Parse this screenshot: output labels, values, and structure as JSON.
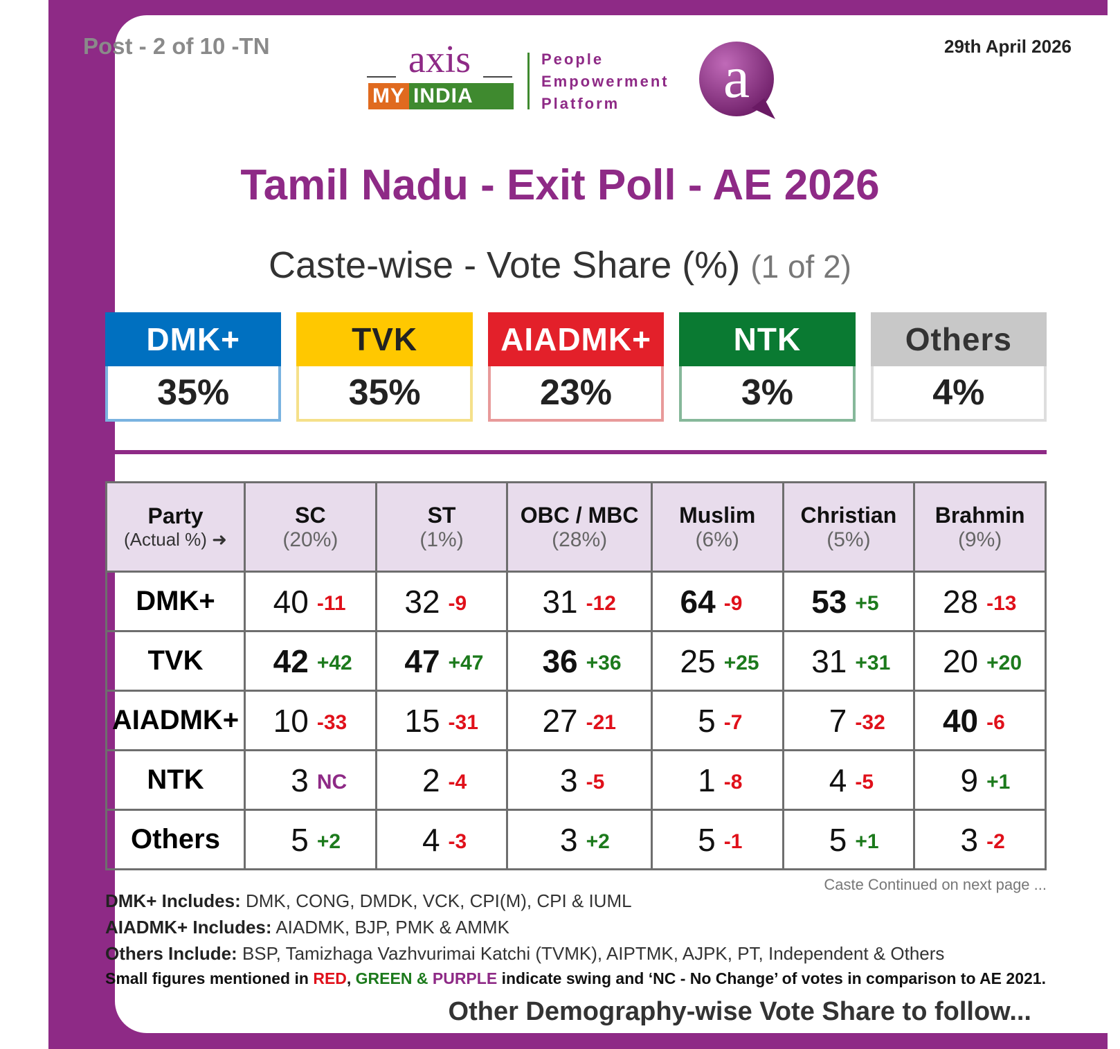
{
  "header": {
    "post": "Post - 2 of 10 -TN",
    "date": "29th April 2026",
    "logo_axis": "axis",
    "logo_my": "MY",
    "logo_india": "INDIA",
    "logo_tagline_1": "People",
    "logo_tagline_2": "Empowerment",
    "logo_tagline_3": "Platform"
  },
  "title": "Tamil Nadu - Exit Poll - AE 2026",
  "subtitle": "Caste-wise - Vote Share (%)",
  "subtitle_part": "(1 of 2)",
  "colors": {
    "brand": "#8e2a86",
    "dmk": "#0070c0",
    "tvk": "#ffc800",
    "aiadmk": "#e3202a",
    "ntk": "#0a7a32",
    "others": "#c8c8c8",
    "swing_negative": "#e0101a",
    "swing_positive": "#1c7a1c",
    "no_change": "#8e2a86"
  },
  "overall": [
    {
      "party": "DMK+",
      "value": "35%"
    },
    {
      "party": "TVK",
      "value": "35%"
    },
    {
      "party": "AIADMK+",
      "value": "23%"
    },
    {
      "party": "NTK",
      "value": "3%"
    },
    {
      "party": "Others",
      "value": "4%"
    }
  ],
  "chart_data": {
    "type": "table",
    "title": "Caste-wise - Vote Share (%)",
    "row_header": "Party",
    "row_header_sub": "(Actual %)",
    "columns": [
      {
        "name": "SC",
        "share": "(20%)"
      },
      {
        "name": "ST",
        "share": "(1%)"
      },
      {
        "name": "OBC / MBC",
        "share": "(28%)"
      },
      {
        "name": "Muslim",
        "share": "(6%)"
      },
      {
        "name": "Christian",
        "share": "(5%)"
      },
      {
        "name": "Brahmin",
        "share": "(9%)"
      }
    ],
    "rows": [
      {
        "party": "DMK+",
        "values": [
          40,
          32,
          31,
          64,
          53,
          28
        ],
        "swings": [
          "-11",
          "-9",
          "-12",
          "-9",
          "+5",
          "-13"
        ],
        "bold": [
          false,
          false,
          false,
          true,
          true,
          false
        ]
      },
      {
        "party": "TVK",
        "values": [
          42,
          47,
          36,
          25,
          31,
          20
        ],
        "swings": [
          "+42",
          "+47",
          "+36",
          "+25",
          "+31",
          "+20"
        ],
        "bold": [
          true,
          true,
          true,
          false,
          false,
          false
        ]
      },
      {
        "party": "AIADMK+",
        "values": [
          10,
          15,
          27,
          5,
          7,
          40
        ],
        "swings": [
          "-33",
          "-31",
          "-21",
          "-7",
          "-32",
          "-6"
        ],
        "bold": [
          false,
          false,
          false,
          false,
          false,
          true
        ]
      },
      {
        "party": "NTK",
        "values": [
          3,
          2,
          3,
          1,
          4,
          9
        ],
        "swings": [
          "NC",
          "-4",
          "-5",
          "-8",
          "-5",
          "+1"
        ],
        "bold": [
          false,
          false,
          false,
          false,
          false,
          false
        ]
      },
      {
        "party": "Others",
        "values": [
          5,
          4,
          3,
          5,
          5,
          3
        ],
        "swings": [
          "+2",
          "-3",
          "+2",
          "-1",
          "+1",
          "-2"
        ],
        "bold": [
          false,
          false,
          false,
          false,
          false,
          false
        ]
      }
    ]
  },
  "footer": {
    "continued": "Caste Continued on next page ...",
    "dmk_label": "DMK+ Includes:",
    "dmk_text": "DMK, CONG, DMDK, VCK, CPI(M), CPI & IUML",
    "aiadmk_label": "AIADMK+ Includes:",
    "aiadmk_text": "AIADMK, BJP, PMK & AMMK",
    "others_label": "Others Include:",
    "others_text": "BSP, Tamizhaga Vazhvurimai Katchi (TVMK), AIPTMK, AJPK, PT, Independent & Others",
    "note_1": "Small figures mentioned in",
    "note_red": "RED",
    "note_comma": ",",
    "note_green": "GREEN",
    "note_amp": "&",
    "note_purple": "PURPLE",
    "note_2": "indicate swing and ‘NC - No Change’ of votes in comparison to AE 2021.",
    "follow": "Other Demography-wise Vote Share to follow..."
  }
}
